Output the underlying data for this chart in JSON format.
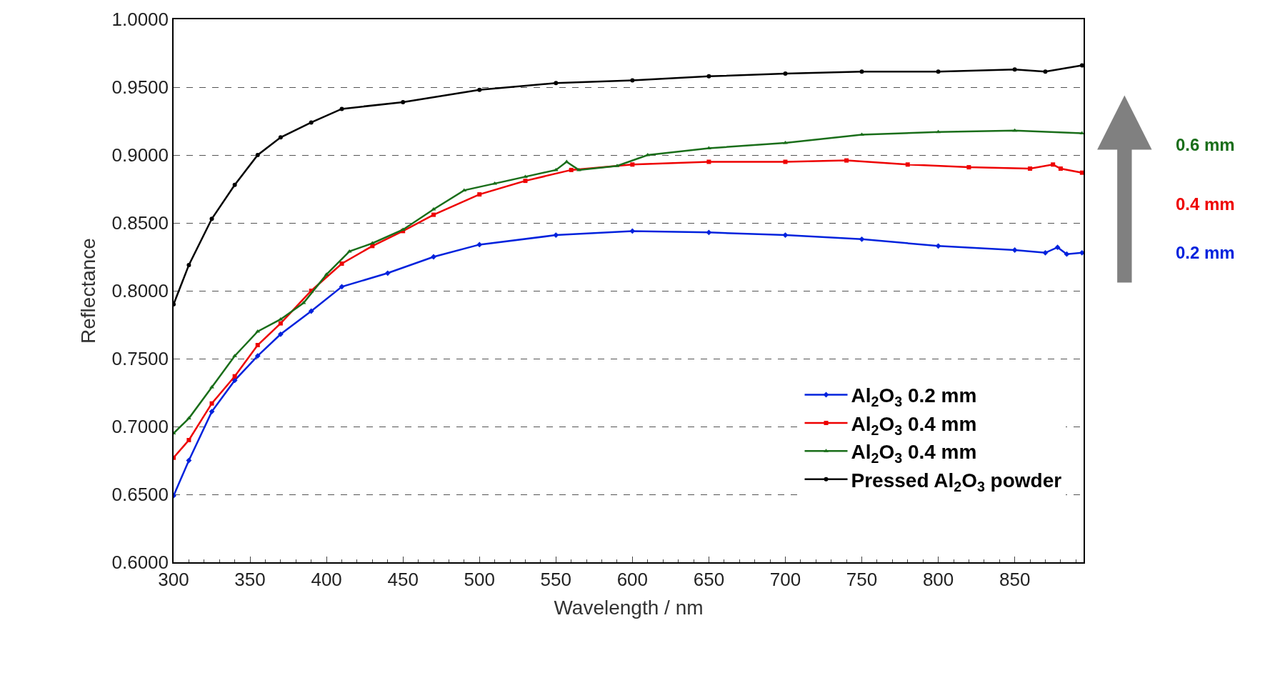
{
  "chart_data": {
    "type": "line",
    "xlabel": "Wavelength / nm",
    "ylabel": "Reflectance",
    "xlim": [
      300,
      895
    ],
    "xticks": [
      300,
      350,
      400,
      450,
      500,
      550,
      600,
      650,
      700,
      750,
      800,
      850
    ],
    "ylim": [
      0.6,
      1.0
    ],
    "yticks": [
      {
        "value": 0.6,
        "label": "0.6000"
      },
      {
        "value": 0.65,
        "label": "0.6500"
      },
      {
        "value": 0.7,
        "label": "0.7000"
      },
      {
        "value": 0.75,
        "label": "0.7500"
      },
      {
        "value": 0.8,
        "label": "0.8000"
      },
      {
        "value": 0.85,
        "label": "0.8500"
      },
      {
        "value": 0.9,
        "label": "0.9000"
      },
      {
        "value": 0.95,
        "label": "0.9500"
      },
      {
        "value": 1.0,
        "label": "1.0000"
      }
    ],
    "grid": "y",
    "legend": "bottom right",
    "line_style": "solid",
    "series": [
      {
        "name": "Al$_{2}$O$_{3}$ 0.2 mm",
        "color": "#0022dd",
        "marker": "diamond",
        "x": [
          300,
          310,
          325,
          340,
          355,
          370,
          390,
          410,
          440,
          470,
          500,
          550,
          600,
          650,
          700,
          750,
          800,
          850,
          870,
          878,
          884,
          894
        ],
        "values": [
          0.649,
          0.675,
          0.711,
          0.734,
          0.752,
          0.768,
          0.785,
          0.803,
          0.813,
          0.825,
          0.834,
          0.841,
          0.844,
          0.843,
          0.841,
          0.838,
          0.833,
          0.83,
          0.828,
          0.832,
          0.827,
          0.828
        ]
      },
      {
        "name": "Al$_{2}$O$_{3}$ 0.4 mm",
        "color": "#ee0000",
        "marker": "square",
        "x": [
          300,
          310,
          325,
          340,
          355,
          370,
          390,
          410,
          430,
          450,
          470,
          500,
          530,
          560,
          600,
          650,
          700,
          740,
          780,
          820,
          860,
          875,
          880,
          894
        ],
        "values": [
          0.677,
          0.69,
          0.717,
          0.737,
          0.76,
          0.776,
          0.8,
          0.82,
          0.833,
          0.844,
          0.856,
          0.871,
          0.881,
          0.889,
          0.893,
          0.895,
          0.895,
          0.896,
          0.893,
          0.891,
          0.89,
          0.893,
          0.89,
          0.887
        ]
      },
      {
        "name": "Al$_{2}$O$_{3}$ 0.4 mm",
        "color": "#1a6e1a",
        "marker": "triangle",
        "x": [
          300,
          310,
          325,
          340,
          355,
          370,
          385,
          400,
          415,
          430,
          450,
          470,
          490,
          510,
          530,
          550,
          557,
          565,
          590,
          610,
          650,
          700,
          750,
          800,
          850,
          894
        ],
        "values": [
          0.695,
          0.706,
          0.729,
          0.752,
          0.77,
          0.779,
          0.791,
          0.812,
          0.829,
          0.835,
          0.845,
          0.86,
          0.874,
          0.879,
          0.884,
          0.889,
          0.895,
          0.889,
          0.892,
          0.9,
          0.905,
          0.909,
          0.915,
          0.917,
          0.918,
          0.916
        ]
      },
      {
        "name": "Pressed Al$_{2}$O$_{3}$ powder",
        "color": "#000000",
        "marker": "circle",
        "x": [
          300,
          310,
          325,
          340,
          355,
          370,
          390,
          410,
          450,
          500,
          550,
          600,
          650,
          700,
          750,
          800,
          850,
          870,
          894
        ],
        "values": [
          0.79,
          0.819,
          0.853,
          0.878,
          0.9,
          0.913,
          0.924,
          0.934,
          0.939,
          0.948,
          0.953,
          0.955,
          0.958,
          0.96,
          0.9615,
          0.9615,
          0.963,
          0.9615,
          0.966
        ]
      }
    ],
    "annotations": [
      "0.6 mm",
      "0.4 mm",
      "0.2 mm"
    ]
  }
}
